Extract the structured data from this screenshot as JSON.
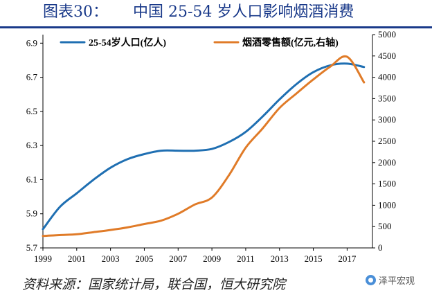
{
  "figure": {
    "label": "图表30：",
    "title": "中国 25-54 岁人口影响烟酒消费",
    "source": "资料来源：国家统计局，联合国，恒大研究院",
    "watermark": "泽平宏观"
  },
  "colors": {
    "blue": "#1f6fb2",
    "orange": "#e07b28",
    "title": "#1a3a8a"
  },
  "chart_data": {
    "type": "line",
    "x_ticks": [
      "1999",
      "2001",
      "2003",
      "2005",
      "2007",
      "2009",
      "2011",
      "2013",
      "2015",
      "2017"
    ],
    "y_left_ticks": [
      "5.7",
      "5.9",
      "6.1",
      "6.3",
      "6.5",
      "6.7",
      "6.9"
    ],
    "y_right_ticks": [
      "0",
      "500",
      "1000",
      "1500",
      "2000",
      "2500",
      "3000",
      "3500",
      "4000",
      "4500",
      "5000"
    ],
    "ylim_left": [
      5.7,
      6.95
    ],
    "ylim_right": [
      0,
      5000
    ],
    "xlim": [
      1999,
      2018.5
    ],
    "grid": false,
    "legend": "top",
    "series": [
      {
        "name": "25-54岁人口(亿人)",
        "axis": "left",
        "x": [
          1999,
          2000,
          2001,
          2002,
          2003,
          2004,
          2005,
          2006,
          2007,
          2008,
          2009,
          2010,
          2011,
          2012,
          2013,
          2014,
          2015,
          2016,
          2017,
          2018
        ],
        "y": [
          5.81,
          5.94,
          6.02,
          6.1,
          6.17,
          6.22,
          6.25,
          6.27,
          6.27,
          6.27,
          6.28,
          6.32,
          6.38,
          6.47,
          6.57,
          6.66,
          6.73,
          6.77,
          6.78,
          6.76
        ]
      },
      {
        "name": "烟酒零售额(亿元,右轴)",
        "axis": "right",
        "x": [
          1999,
          2000,
          2001,
          2002,
          2003,
          2004,
          2005,
          2006,
          2007,
          2008,
          2009,
          2010,
          2011,
          2012,
          2013,
          2014,
          2015,
          2016,
          2017,
          2018
        ],
        "y": [
          280,
          300,
          320,
          370,
          420,
          480,
          560,
          640,
          800,
          1020,
          1180,
          1700,
          2350,
          2800,
          3280,
          3620,
          3950,
          4250,
          4480,
          3880
        ]
      }
    ]
  }
}
